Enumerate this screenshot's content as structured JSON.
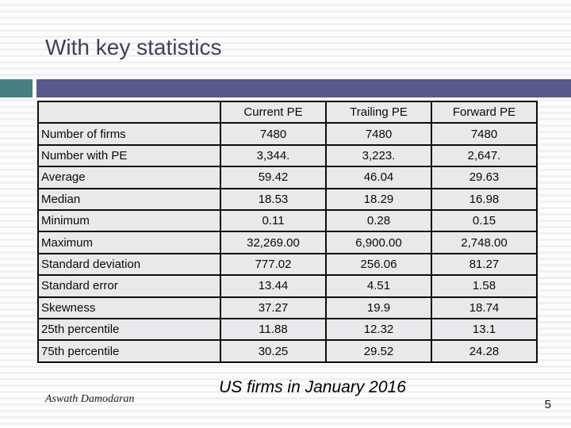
{
  "slide": {
    "title": "With key statistics",
    "footer_left": "Aswath Damodaran",
    "footer_center": "US firms in January 2016",
    "page_number": "5"
  },
  "colors": {
    "accent_teal": "#488081",
    "accent_purple": "#575a8a",
    "title_text": "#3f4254",
    "cell_background": "#e9e9ec",
    "table_border": "#0d0d0d",
    "background_stripe": "#f1f1f4"
  },
  "chart_data": {
    "type": "table",
    "title": "US firms in January 2016",
    "columns": [
      "",
      "Current PE",
      "Trailing PE",
      "Forward PE"
    ],
    "rows": [
      {
        "label": "Number of firms",
        "values": [
          "7480",
          "7480",
          "7480"
        ]
      },
      {
        "label": "Number with PE",
        "values": [
          "3,344.",
          "3,223.",
          "2,647."
        ]
      },
      {
        "label": "Average",
        "values": [
          "59.42",
          "46.04",
          "29.63"
        ]
      },
      {
        "label": "Median",
        "values": [
          "18.53",
          "18.29",
          "16.98"
        ]
      },
      {
        "label": "Minimum",
        "values": [
          "0.11",
          "0.28",
          "0.15"
        ]
      },
      {
        "label": "Maximum",
        "values": [
          "32,269.00",
          "6,900.00",
          "2,748.00"
        ]
      },
      {
        "label": "Standard deviation",
        "values": [
          "777.02",
          "256.06",
          "81.27"
        ]
      },
      {
        "label": "Standard error",
        "values": [
          "13.44",
          "4.51",
          "1.58"
        ]
      },
      {
        "label": "Skewness",
        "values": [
          "37.27",
          "19.9",
          "18.74"
        ]
      },
      {
        "label": "25th percentile",
        "values": [
          "11.88",
          "12.32",
          "13.1"
        ]
      },
      {
        "label": "75th percentile",
        "values": [
          "30.25",
          "29.52",
          "24.28"
        ]
      }
    ]
  }
}
